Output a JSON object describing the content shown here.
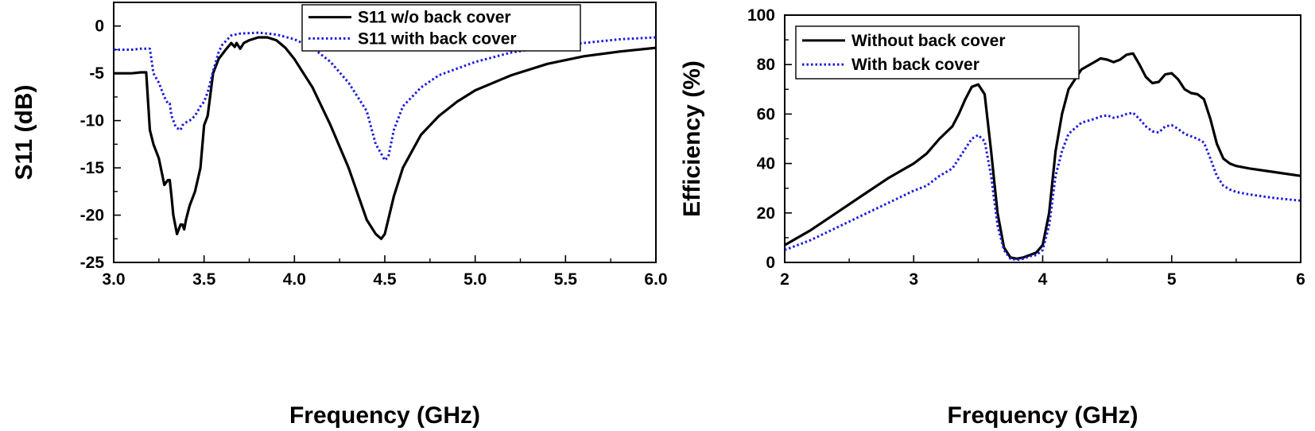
{
  "chart_data": [
    {
      "type": "line",
      "xlabel": "Frequency (GHz)",
      "ylabel": "S11 (dB)",
      "xlim": [
        3.0,
        6.0
      ],
      "ylim": [
        -25,
        2.5
      ],
      "xticks": [
        "3.0",
        "3.5",
        "4.0",
        "4.5",
        "5.0",
        "5.5",
        "6.0"
      ],
      "xtick_values": [
        3.0,
        3.5,
        4.0,
        4.5,
        5.0,
        5.5,
        6.0
      ],
      "yticks": [
        "0",
        "-5",
        "-10",
        "-15",
        "-20",
        "-25"
      ],
      "ytick_values": [
        0,
        -5,
        -10,
        -15,
        -20,
        -25
      ],
      "grid": false,
      "legend_position": "top-center",
      "series": [
        {
          "name": "S11 w/o back cover",
          "color": "#000000",
          "style": "solid",
          "x": [
            3.0,
            3.05,
            3.1,
            3.15,
            3.18,
            3.2,
            3.22,
            3.25,
            3.28,
            3.3,
            3.31,
            3.32,
            3.33,
            3.34,
            3.35,
            3.37,
            3.38,
            3.39,
            3.4,
            3.42,
            3.45,
            3.48,
            3.5,
            3.52,
            3.55,
            3.58,
            3.6,
            3.62,
            3.65,
            3.67,
            3.68,
            3.7,
            3.72,
            3.75,
            3.8,
            3.85,
            3.9,
            3.95,
            4.0,
            4.1,
            4.2,
            4.3,
            4.4,
            4.45,
            4.48,
            4.5,
            4.55,
            4.6,
            4.7,
            4.8,
            4.9,
            5.0,
            5.2,
            5.4,
            5.6,
            5.8,
            6.0
          ],
          "y": [
            -5.0,
            -5.0,
            -5.0,
            -4.9,
            -4.9,
            -11.0,
            -12.5,
            -14.0,
            -16.8,
            -16.3,
            -16.3,
            -18.0,
            -20.0,
            -21.0,
            -22.0,
            -21.0,
            -21.0,
            -21.5,
            -20.5,
            -19.0,
            -17.5,
            -15.0,
            -10.5,
            -9.5,
            -5.0,
            -3.5,
            -3.0,
            -2.5,
            -1.8,
            -2.2,
            -1.8,
            -2.4,
            -1.8,
            -1.5,
            -1.2,
            -1.2,
            -1.5,
            -2.3,
            -3.5,
            -6.5,
            -10.5,
            -15.0,
            -20.5,
            -22.0,
            -22.5,
            -22.0,
            -18.0,
            -15.0,
            -11.5,
            -9.5,
            -8.0,
            -6.8,
            -5.2,
            -4.0,
            -3.2,
            -2.7,
            -2.3
          ]
        },
        {
          "name": "S11 with back cover",
          "color": "#1a1adc",
          "style": "dotted",
          "x": [
            3.0,
            3.1,
            3.15,
            3.2,
            3.22,
            3.25,
            3.28,
            3.3,
            3.31,
            3.32,
            3.33,
            3.34,
            3.35,
            3.37,
            3.38,
            3.4,
            3.42,
            3.45,
            3.48,
            3.5,
            3.52,
            3.55,
            3.58,
            3.6,
            3.65,
            3.7,
            3.8,
            3.9,
            4.0,
            4.1,
            4.2,
            4.3,
            4.4,
            4.45,
            4.48,
            4.5,
            4.52,
            4.55,
            4.6,
            4.7,
            4.8,
            5.0,
            5.2,
            5.4,
            5.6,
            5.8,
            6.0
          ],
          "y": [
            -2.5,
            -2.5,
            -2.4,
            -2.4,
            -5.0,
            -6.0,
            -7.5,
            -8.2,
            -8.2,
            -9.5,
            -10.0,
            -10.5,
            -10.8,
            -11.0,
            -10.5,
            -10.2,
            -10.0,
            -9.5,
            -8.5,
            -8.0,
            -7.0,
            -4.8,
            -2.8,
            -2.0,
            -1.0,
            -0.8,
            -0.7,
            -0.9,
            -1.4,
            -2.3,
            -3.8,
            -6.0,
            -9.0,
            -12.5,
            -13.5,
            -14.2,
            -13.8,
            -11.0,
            -8.5,
            -6.5,
            -5.2,
            -3.8,
            -2.8,
            -2.2,
            -1.8,
            -1.4,
            -1.2
          ]
        }
      ]
    },
    {
      "type": "line",
      "xlabel": "Frequency (GHz)",
      "ylabel": "Efficiency (%)",
      "xlim": [
        2,
        6
      ],
      "ylim": [
        0,
        100
      ],
      "xticks": [
        "2",
        "3",
        "4",
        "5",
        "6"
      ],
      "xtick_values": [
        2,
        3,
        4,
        5,
        6
      ],
      "yticks": [
        "0",
        "20",
        "40",
        "60",
        "80",
        "100"
      ],
      "ytick_values": [
        0,
        20,
        40,
        60,
        80,
        100
      ],
      "grid": false,
      "legend_position": "top-left",
      "series": [
        {
          "name": "Without back cover",
          "color": "#000000",
          "style": "solid",
          "x": [
            2.0,
            2.2,
            2.4,
            2.6,
            2.8,
            3.0,
            3.1,
            3.2,
            3.3,
            3.35,
            3.4,
            3.45,
            3.5,
            3.55,
            3.6,
            3.65,
            3.7,
            3.75,
            3.8,
            3.85,
            3.9,
            3.95,
            4.0,
            4.05,
            4.1,
            4.15,
            4.2,
            4.3,
            4.4,
            4.45,
            4.5,
            4.55,
            4.6,
            4.65,
            4.7,
            4.75,
            4.8,
            4.85,
            4.9,
            4.95,
            5.0,
            5.05,
            5.1,
            5.15,
            5.2,
            5.25,
            5.3,
            5.35,
            5.4,
            5.45,
            5.5,
            5.6,
            5.8,
            6.0
          ],
          "y": [
            7,
            13,
            20,
            27,
            34,
            40,
            44,
            50,
            55,
            60,
            66,
            71,
            72,
            68,
            45,
            20,
            6,
            2,
            1.5,
            2,
            3,
            4,
            7,
            20,
            45,
            60,
            70,
            78,
            81,
            82.5,
            82,
            81,
            82,
            84,
            84.5,
            80,
            75,
            72.5,
            73,
            76,
            76.5,
            74,
            70,
            68.5,
            68,
            66,
            58,
            48,
            42,
            40,
            39,
            38,
            36.5,
            35
          ]
        },
        {
          "name": "With back cover",
          "color": "#1a1adc",
          "style": "dotted",
          "x": [
            2.0,
            2.2,
            2.4,
            2.6,
            2.8,
            3.0,
            3.1,
            3.2,
            3.3,
            3.35,
            3.4,
            3.45,
            3.5,
            3.55,
            3.6,
            3.65,
            3.7,
            3.75,
            3.8,
            3.85,
            3.9,
            3.95,
            4.0,
            4.05,
            4.1,
            4.15,
            4.2,
            4.3,
            4.4,
            4.45,
            4.5,
            4.55,
            4.6,
            4.65,
            4.7,
            4.75,
            4.8,
            4.85,
            4.9,
            4.95,
            5.0,
            5.05,
            5.1,
            5.15,
            5.2,
            5.25,
            5.3,
            5.35,
            5.4,
            5.45,
            5.5,
            5.6,
            5.8,
            6.0
          ],
          "y": [
            5,
            9,
            14,
            19,
            24,
            29,
            31,
            35,
            38,
            42,
            46,
            50,
            51.5,
            49,
            35,
            15,
            5,
            1.5,
            1,
            1.5,
            2.5,
            3,
            5,
            15,
            35,
            45,
            52,
            56.5,
            58,
            59,
            59.5,
            58.5,
            59,
            60,
            60.5,
            58,
            55,
            53,
            52.5,
            55,
            55.5,
            54,
            52,
            51,
            50,
            48.5,
            42,
            35,
            31,
            29.5,
            28.5,
            27.5,
            26,
            25
          ]
        }
      ]
    }
  ]
}
